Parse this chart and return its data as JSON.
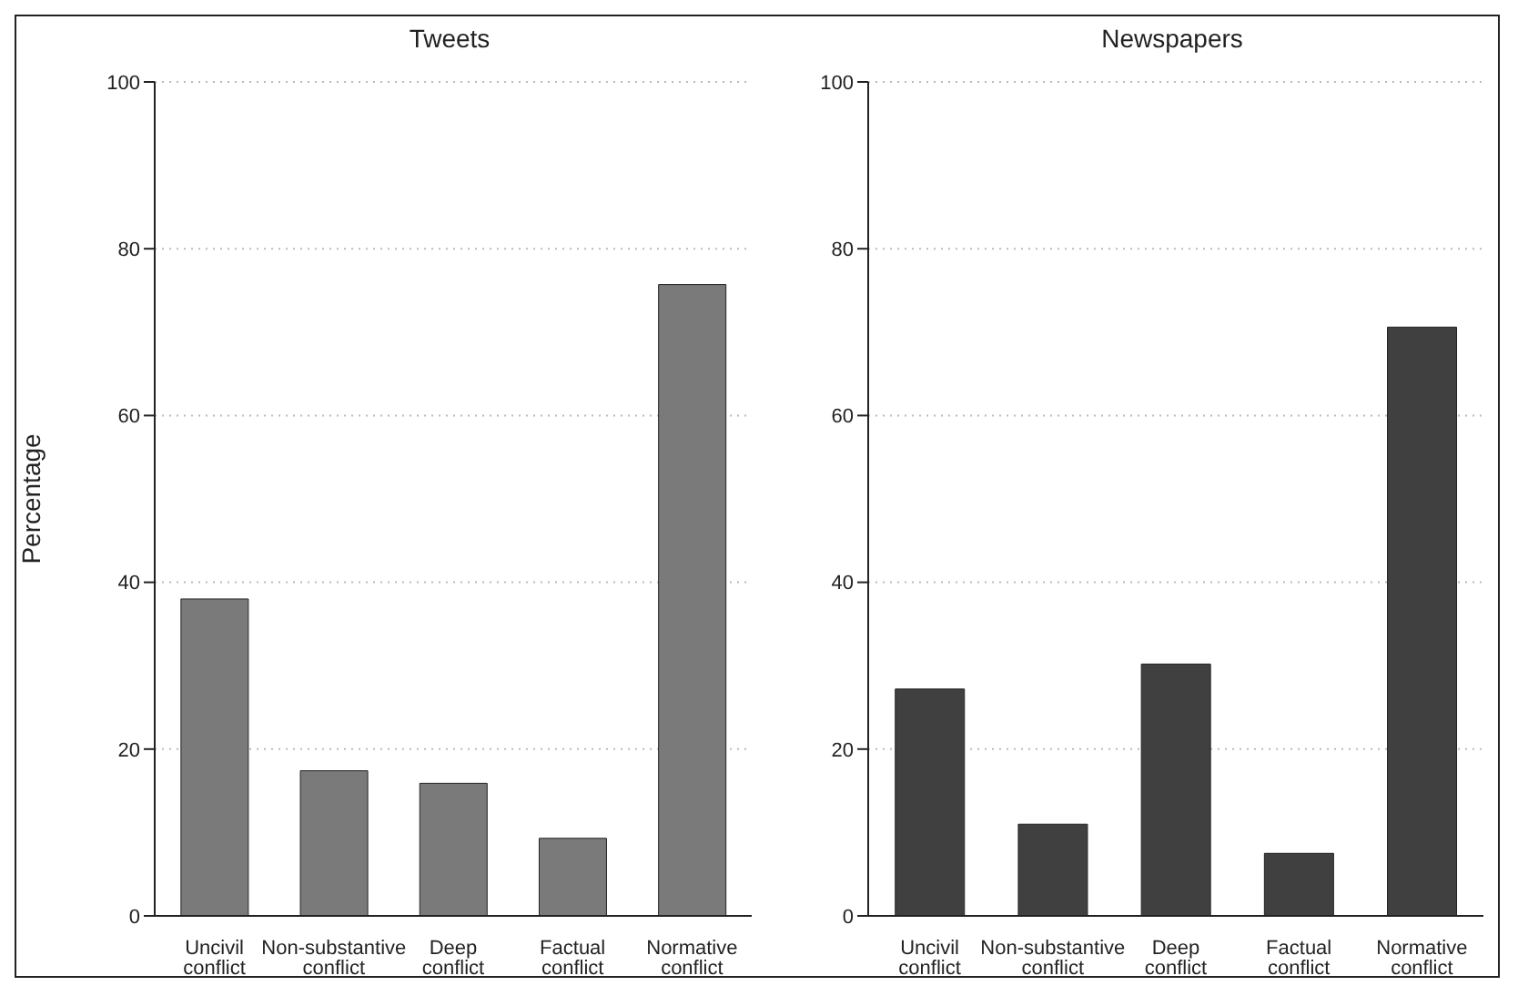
{
  "chart_data": [
    {
      "type": "bar",
      "title": "Tweets",
      "ylabel": "Percentage",
      "categories": [
        "Uncivil conflict",
        "Non-substantive conflict",
        "Deep conflict",
        "Factual conflict",
        "Normative conflict"
      ],
      "series": [
        {
          "color": "#7a7a7a",
          "values": [
            38,
            17.4,
            15.9,
            9.3,
            75.7
          ]
        }
      ],
      "ylim": [
        0,
        100
      ],
      "yticks": [
        0,
        20,
        40,
        60,
        80,
        100
      ],
      "grid": "y",
      "legend": false
    },
    {
      "type": "bar",
      "title": "Newspapers",
      "categories": [
        "Uncivil conflict",
        "Non-substantive conflict",
        "Deep conflict",
        "Factual conflict",
        "Normative conflict"
      ],
      "series": [
        {
          "color": "#404040",
          "values": [
            27.2,
            11,
            30.2,
            7.5,
            70.6
          ]
        }
      ],
      "ylim": [
        0,
        100
      ],
      "yticks": [
        0,
        20,
        40,
        60,
        80,
        100
      ],
      "grid": "y",
      "legend": false
    }
  ]
}
